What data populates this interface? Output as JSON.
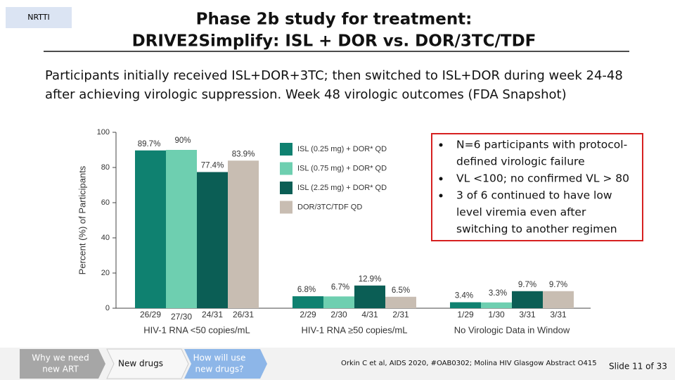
{
  "tag": "NRTTI",
  "title_lines": [
    "Phase 2b study for treatment:",
    "DRIVE2Simplify: ISL + DOR vs. DOR/3TC/TDF"
  ],
  "intro_lines": [
    "Participants initially received ISL+DOR+3TC; then switched to ISL+DOR during week 24-48",
    "after achieving virologic suppression. Week 48 virologic outcomes (FDA Snapshot)"
  ],
  "bullets": [
    [
      "N=6 participants with protocol-",
      "defined virologic failure"
    ],
    [
      "VL <100; no confirmed VL > 80"
    ],
    [
      "3 of 6 continued to have low",
      "level viremia even after",
      "switching to another regimen"
    ]
  ],
  "footer": {
    "nav": [
      [
        "Why we need",
        "new ART"
      ],
      [
        "New drugs"
      ],
      [
        "How will use",
        "new drugs?"
      ]
    ],
    "citation": "Orkin C et al, AIDS 2020, #OAB0302; Molina HIV Glasgow Abstract O415",
    "slide": "Slide 11 of 33"
  },
  "chart_data": {
    "type": "bar",
    "y_label": "Percent (%) of Participants",
    "categories": [
      "HIV-1 RNA <50 copies/mL",
      "HIV-1 RNA ≥50 copies/mL",
      "No Virologic Data in Window"
    ],
    "series": [
      {
        "name": "ISL (0.25 mg) + DOR* QD",
        "color": "#0f8170",
        "values": [
          89.7,
          6.8,
          3.4
        ],
        "value_labels": [
          "89.7%",
          "6.8%",
          "3.4%"
        ],
        "counts": [
          "26/29",
          "2/29",
          "1/29"
        ]
      },
      {
        "name": "ISL (0.75 mg) + DOR* QD",
        "color": "#6ecfb0",
        "values": [
          90,
          6.7,
          3.3
        ],
        "value_labels": [
          "90%",
          "6.7%",
          "3.3%"
        ],
        "counts": [
          "27/30",
          "2/30",
          "1/30"
        ]
      },
      {
        "name": "ISL (2.25 mg) + DOR* QD",
        "color": "#0b5e55",
        "values": [
          77.4,
          12.9,
          9.7
        ],
        "value_labels": [
          "77.4%",
          "12.9%",
          "9.7%"
        ],
        "counts": [
          "24/31",
          "4/31",
          "3/31"
        ]
      },
      {
        "name": "DOR/3TC/TDF  QD",
        "color": "#c8bdb2",
        "values": [
          83.9,
          6.5,
          9.7
        ],
        "value_labels": [
          "83.9%",
          "6.5%",
          "9.7%"
        ],
        "counts": [
          "26/31",
          "2/31",
          "3/31"
        ]
      }
    ],
    "ylim": [
      0,
      100
    ],
    "yticks": [
      0,
      20,
      40,
      60,
      80,
      100
    ]
  }
}
